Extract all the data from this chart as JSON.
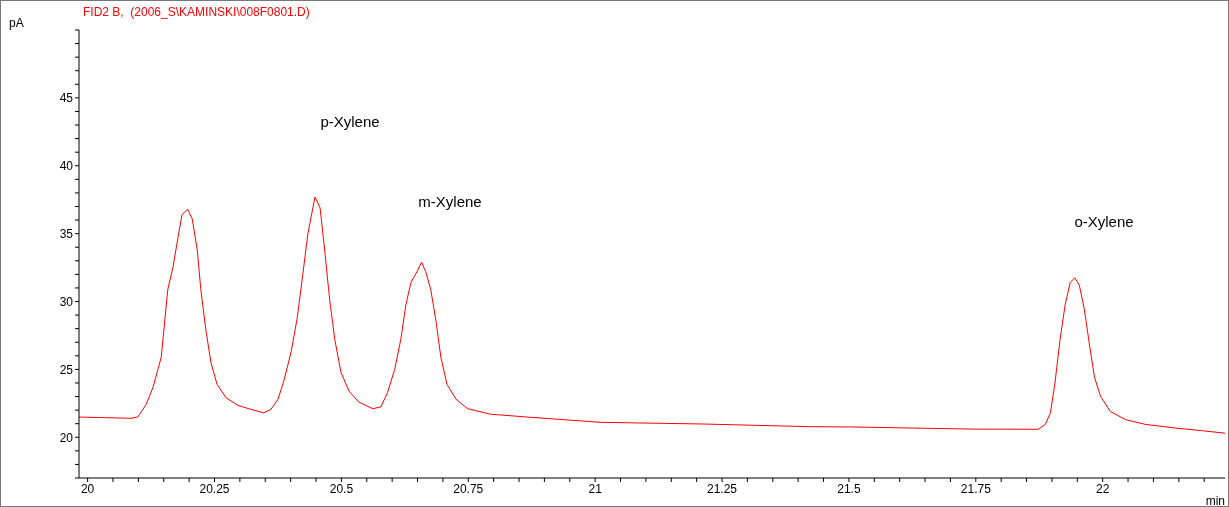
{
  "chart_data": {
    "type": "line",
    "title": "FID2 B,  (2006_S\\KAMINSKI\\008F0801.D)",
    "xlabel": "min",
    "ylabel": "pA",
    "x": [
      19.983,
      20.027,
      20.086,
      20.099,
      20.115,
      20.129,
      20.145,
      20.158,
      20.168,
      20.178,
      20.186,
      20.197,
      20.206,
      20.216,
      20.223,
      20.233,
      20.243,
      20.255,
      20.273,
      20.296,
      20.322,
      20.347,
      20.361,
      20.375,
      20.387,
      20.401,
      20.413,
      20.424,
      20.434,
      20.448,
      20.458,
      20.467,
      20.477,
      20.487,
      20.499,
      20.515,
      20.534,
      20.562,
      20.578,
      20.591,
      20.605,
      20.617,
      20.627,
      20.637,
      20.649,
      20.658,
      20.666,
      20.676,
      20.686,
      20.696,
      20.708,
      20.726,
      20.749,
      20.794,
      20.873,
      21.011,
      21.208,
      21.424,
      21.503,
      21.749,
      21.873,
      21.887,
      21.897,
      21.906,
      21.916,
      21.926,
      21.936,
      21.945,
      21.954,
      21.964,
      21.974,
      21.984,
      21.996,
      22.015,
      22.045,
      22.084,
      22.143,
      22.192,
      22.241
    ],
    "series": [
      {
        "color": "#ff0000",
        "values": [
          21.49,
          21.45,
          21.4,
          21.5,
          22.4,
          23.7,
          25.9,
          30.9,
          32.5,
          34.7,
          36.4,
          36.8,
          36.1,
          33.8,
          30.9,
          27.9,
          25.5,
          23.9,
          22.9,
          22.35,
          22.05,
          21.8,
          22.05,
          22.8,
          24.2,
          26.3,
          28.8,
          32.0,
          35.0,
          37.7,
          36.9,
          33.8,
          30.1,
          27.2,
          24.8,
          23.4,
          22.6,
          22.1,
          22.25,
          23.3,
          25.0,
          27.2,
          29.75,
          31.4,
          32.2,
          32.9,
          32.2,
          30.9,
          28.65,
          25.9,
          23.9,
          22.8,
          22.1,
          21.7,
          21.47,
          21.1,
          20.98,
          20.78,
          20.76,
          20.6,
          20.59,
          20.95,
          21.8,
          24.0,
          27.2,
          29.75,
          31.4,
          31.75,
          31.2,
          29.4,
          26.8,
          24.4,
          23.0,
          21.9,
          21.3,
          20.95,
          20.68,
          20.5,
          20.3
        ]
      }
    ],
    "xlim": [
      19.983,
      22.241
    ],
    "ylim": [
      17,
      50
    ],
    "xticks": [
      20,
      {
        "value": 20.05,
        "label": null
      },
      {
        "value": 20.1,
        "label": null
      },
      {
        "value": 20.15,
        "label": null
      },
      {
        "value": 20.2,
        "label": null
      },
      20.25,
      {
        "value": 20.3,
        "label": null
      },
      {
        "value": 20.35,
        "label": null
      },
      {
        "value": 20.4,
        "label": null
      },
      {
        "value": 20.45,
        "label": null
      },
      20.5,
      {
        "value": 20.55,
        "label": null
      },
      {
        "value": 20.6,
        "label": null
      },
      {
        "value": 20.65,
        "label": null
      },
      {
        "value": 20.7,
        "label": null
      },
      20.75,
      {
        "value": 20.8,
        "label": null
      },
      {
        "value": 20.85,
        "label": null
      },
      {
        "value": 20.9,
        "label": null
      },
      {
        "value": 20.95,
        "label": null
      },
      21,
      {
        "value": 21.05,
        "label": null
      },
      {
        "value": 21.1,
        "label": null
      },
      {
        "value": 21.15,
        "label": null
      },
      {
        "value": 21.2,
        "label": null
      },
      21.25,
      {
        "value": 21.3,
        "label": null
      },
      {
        "value": 21.35,
        "label": null
      },
      {
        "value": 21.4,
        "label": null
      },
      {
        "value": 21.45,
        "label": null
      },
      21.5,
      {
        "value": 21.55,
        "label": null
      },
      {
        "value": 21.6,
        "label": null
      },
      {
        "value": 21.65,
        "label": null
      },
      {
        "value": 21.7,
        "label": null
      },
      21.75,
      {
        "value": 21.8,
        "label": null
      },
      {
        "value": 21.85,
        "label": null
      },
      {
        "value": 21.9,
        "label": null
      },
      {
        "value": 21.95,
        "label": null
      },
      22,
      {
        "value": 22.05,
        "label": null
      },
      {
        "value": 22.1,
        "label": null
      },
      {
        "value": 22.15,
        "label": null
      },
      {
        "value": 22.2,
        "label": null
      }
    ],
    "yticks": [
      {
        "value": 17,
        "label": null
      },
      {
        "value": 18,
        "label": null
      },
      {
        "value": 19,
        "label": null
      },
      20,
      {
        "value": 21,
        "label": null
      },
      {
        "value": 22,
        "label": null
      },
      {
        "value": 23,
        "label": null
      },
      {
        "value": 24,
        "label": null
      },
      25,
      {
        "value": 26,
        "label": null
      },
      {
        "value": 27,
        "label": null
      },
      {
        "value": 28,
        "label": null
      },
      {
        "value": 29,
        "label": null
      },
      30,
      {
        "value": 31,
        "label": null
      },
      {
        "value": 32,
        "label": null
      },
      {
        "value": 33,
        "label": null
      },
      {
        "value": 34,
        "label": null
      },
      35,
      {
        "value": 36,
        "label": null
      },
      {
        "value": 37,
        "label": null
      },
      {
        "value": 38,
        "label": null
      },
      {
        "value": 39,
        "label": null
      },
      40,
      {
        "value": 41,
        "label": null
      },
      {
        "value": 42,
        "label": null
      },
      {
        "value": 43,
        "label": null
      },
      {
        "value": 44,
        "label": null
      },
      45,
      {
        "value": 46,
        "label": null
      },
      {
        "value": 47,
        "label": null
      },
      {
        "value": 48,
        "label": null
      },
      {
        "value": 49,
        "label": null
      },
      {
        "value": 50,
        "label": null
      }
    ],
    "annotations": [
      "p-Xylene",
      "m-Xylene",
      "o-Xylene"
    ]
  }
}
